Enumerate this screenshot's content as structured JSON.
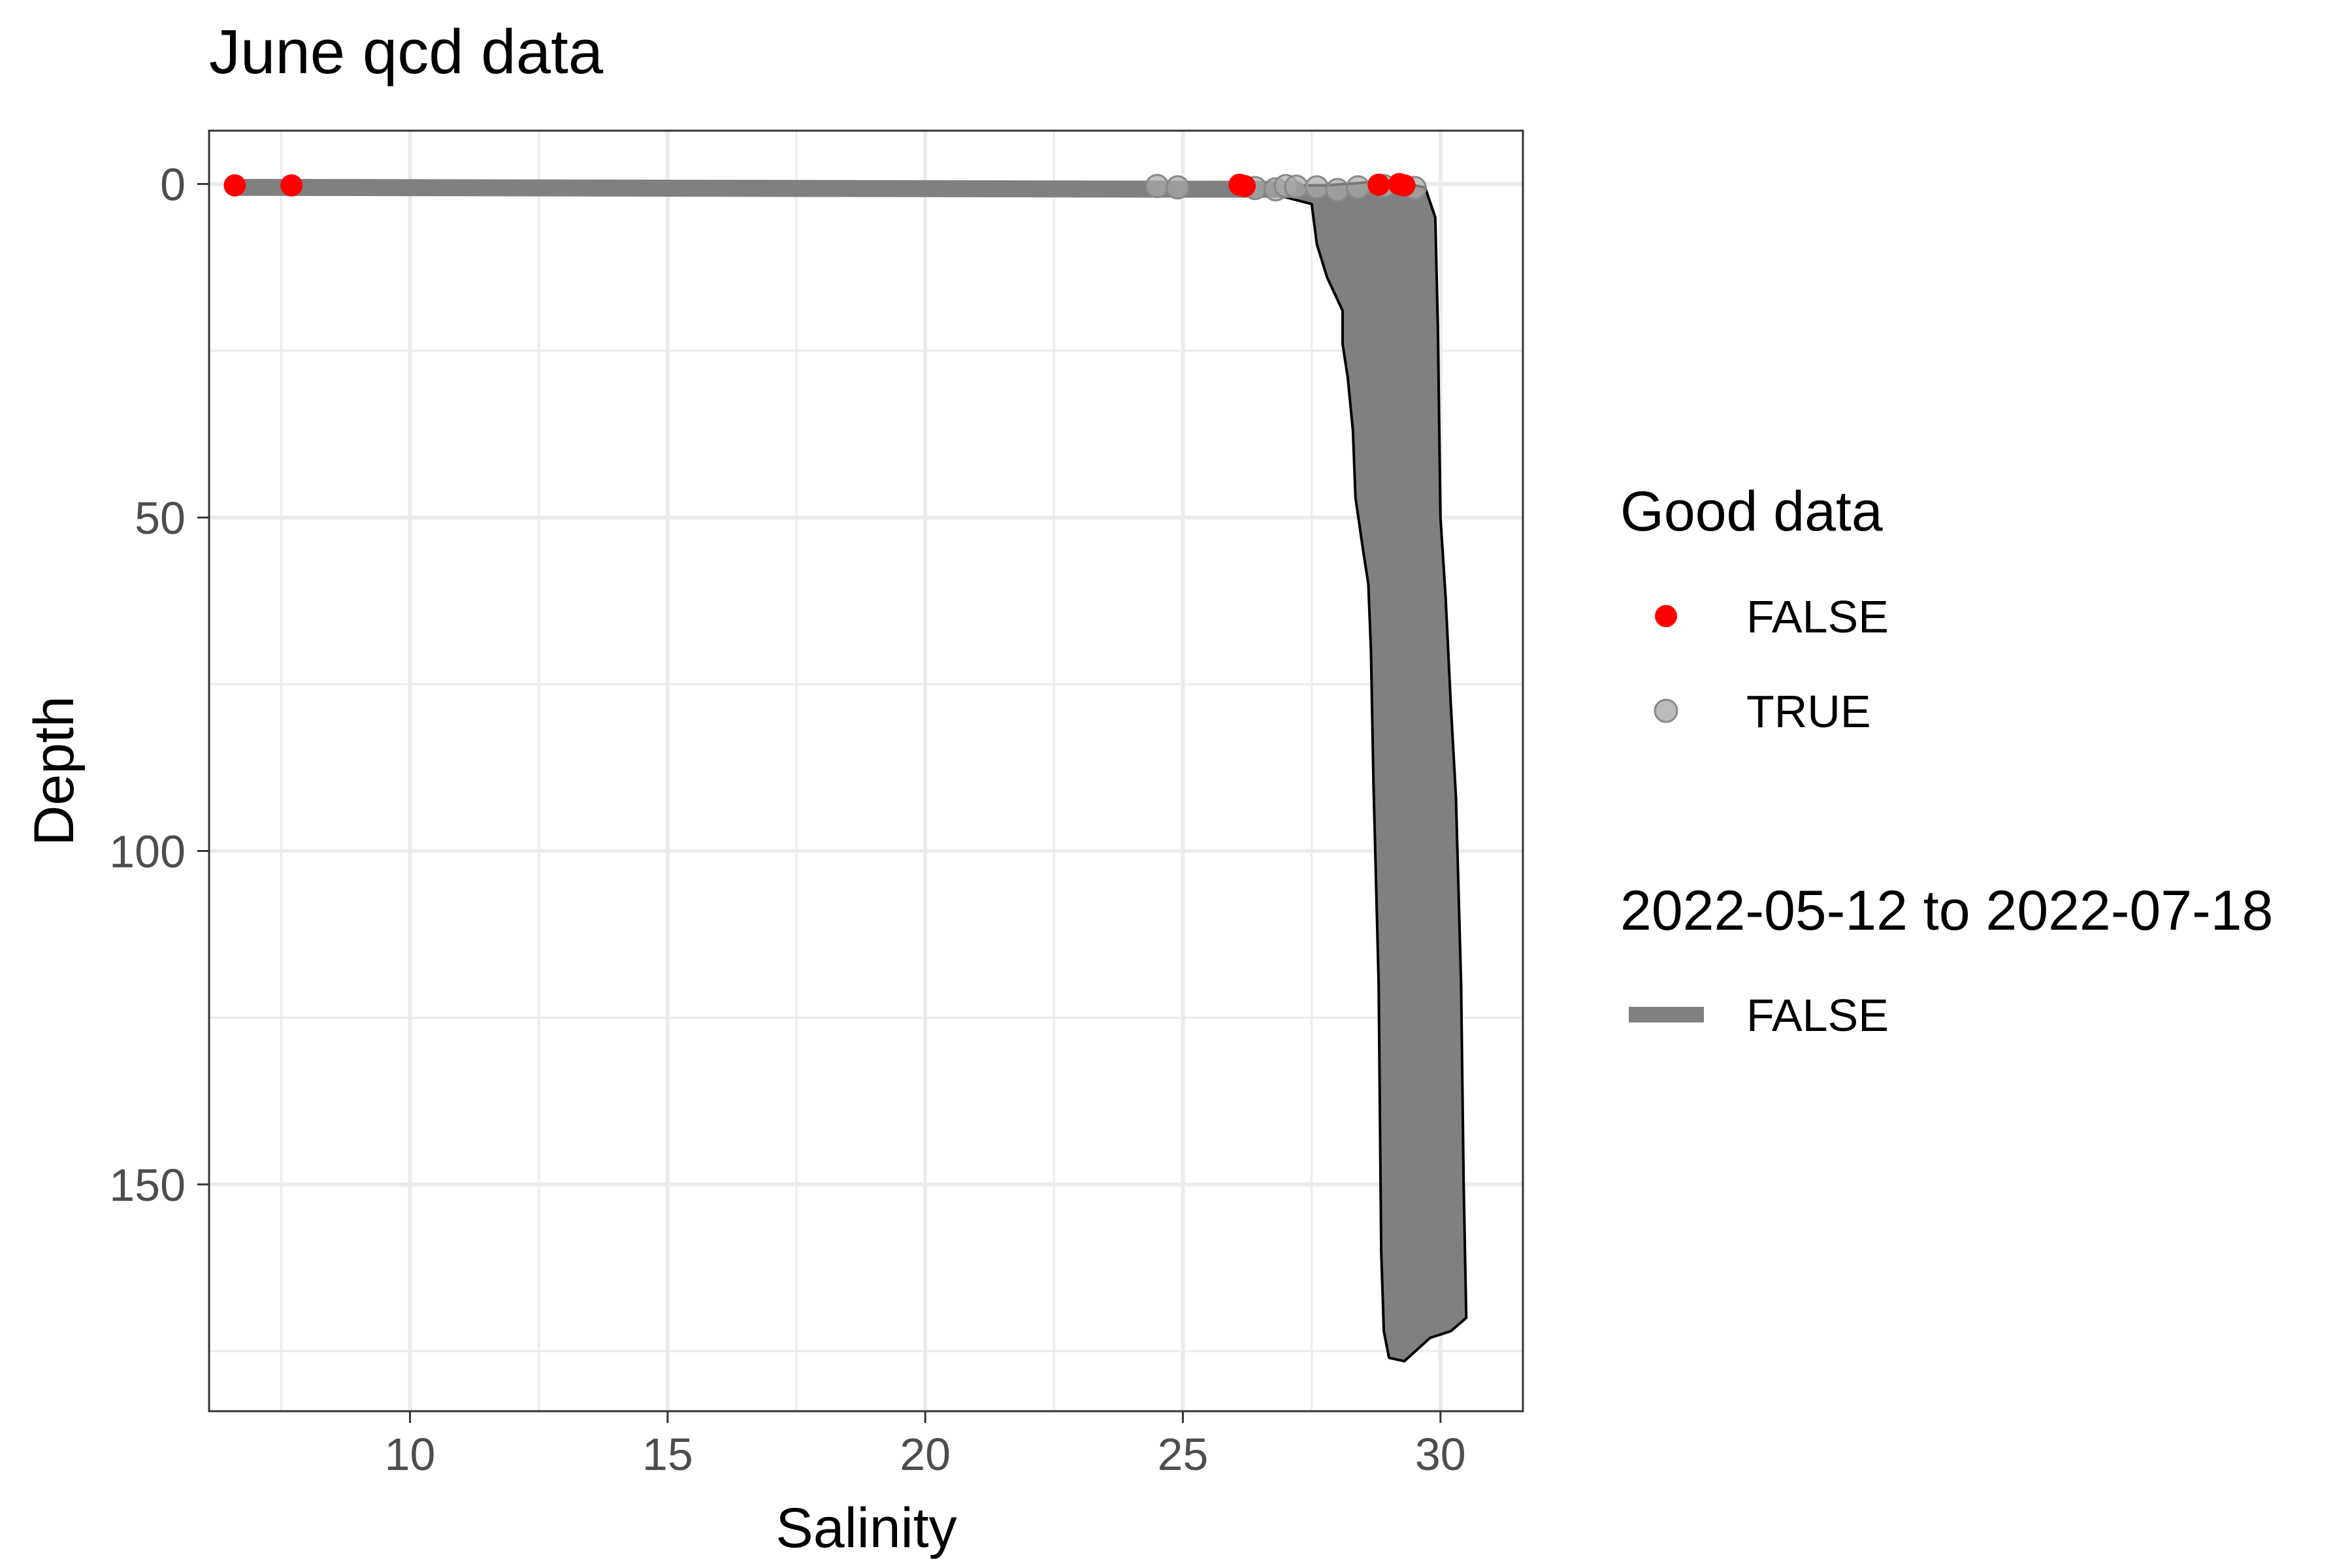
{
  "chart_data": {
    "type": "scatter",
    "title": "June qcd data",
    "xlabel": "Salinity",
    "ylabel": "Depth",
    "xlim": [
      6.1,
      31.6
    ],
    "ylim": [
      184,
      -8
    ],
    "y_reversed": true,
    "x_ticks": [
      10,
      15,
      20,
      25,
      30
    ],
    "y_ticks": [
      0,
      50,
      100,
      150
    ],
    "grid": true,
    "colors": {
      "false_point": "#ff0000",
      "true_point": "#aaaaaa",
      "profile_fill": "#808080",
      "profile_edge": "#000000",
      "grid": "#ebebeb",
      "panel_border": "#333333"
    },
    "legends": [
      {
        "title": "Good data",
        "entries": [
          {
            "label": "FALSE",
            "color": "#ff0000",
            "shape": "point"
          },
          {
            "label": "TRUE",
            "color": "#aaaaaa",
            "shape": "point"
          }
        ]
      },
      {
        "title": "2022-05-12 to 2022-07-18",
        "entries": [
          {
            "label": "FALSE",
            "color": "#808080",
            "shape": "line"
          }
        ]
      }
    ],
    "profile_envelope": {
      "left_edge": [
        [
          6.6,
          0.6
        ],
        [
          12,
          0.8
        ],
        [
          20,
          1.0
        ],
        [
          25,
          1.0
        ],
        [
          26.8,
          1.6
        ],
        [
          27.5,
          3
        ],
        [
          27.6,
          9
        ],
        [
          27.8,
          14
        ],
        [
          28.1,
          19
        ],
        [
          28.1,
          24
        ],
        [
          28.2,
          29
        ],
        [
          28.3,
          37
        ],
        [
          28.35,
          47
        ],
        [
          28.5,
          55
        ],
        [
          28.6,
          60
        ],
        [
          28.65,
          70
        ],
        [
          28.7,
          90
        ],
        [
          28.8,
          120
        ],
        [
          28.85,
          160
        ],
        [
          28.9,
          172
        ],
        [
          29.0,
          176
        ],
        [
          29.3,
          176.5
        ]
      ],
      "right_edge": [
        [
          6.6,
          0.0
        ],
        [
          20,
          0.2
        ],
        [
          27.8,
          0.2
        ],
        [
          29.0,
          -0.5
        ],
        [
          29.7,
          0.5
        ],
        [
          29.9,
          5
        ],
        [
          29.95,
          22
        ],
        [
          30.0,
          50
        ],
        [
          30.1,
          62
        ],
        [
          30.2,
          78
        ],
        [
          30.3,
          92
        ],
        [
          30.4,
          120
        ],
        [
          30.45,
          150
        ],
        [
          30.5,
          170
        ],
        [
          30.2,
          172
        ],
        [
          29.8,
          173
        ]
      ]
    },
    "series": [
      {
        "name": "FALSE",
        "legend": "Good data",
        "color": "#ff0000",
        "x": [
          6.6,
          7.7,
          26.1,
          26.2,
          29.2,
          29.3,
          28.8
        ],
        "y": [
          0.2,
          0.2,
          0.1,
          0.3,
          0.0,
          0.2,
          0.1
        ]
      },
      {
        "name": "TRUE",
        "legend": "Good data",
        "color": "#aaaaaa",
        "x": [
          24.5,
          24.9,
          26.4,
          26.8,
          27.0,
          27.2,
          27.6,
          28.0,
          28.4,
          28.9,
          29.5
        ],
        "y": [
          0.3,
          0.5,
          0.6,
          0.8,
          0.3,
          0.4,
          0.5,
          0.9,
          0.5,
          0.3,
          0.6
        ]
      }
    ]
  }
}
